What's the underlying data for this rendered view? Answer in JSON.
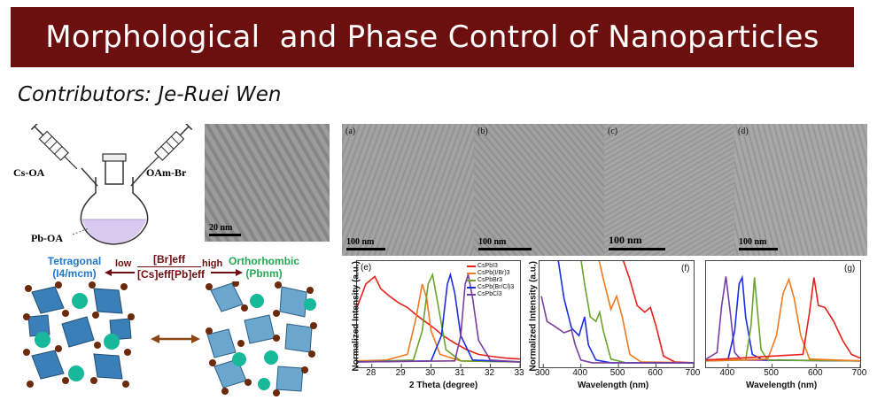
{
  "header": {
    "title": "Morphological  and Phase Control of Nanoparticles",
    "contributors": "Contributors: Je-Ruei Wen"
  },
  "schematic": {
    "left_syringe": "Cs-OA",
    "right_syringe": "OAm-Br",
    "flask": "Pb-OA"
  },
  "tem_small": {
    "scale": "20 nm"
  },
  "tem_panels": [
    {
      "label": "(a)",
      "scale": "100 nm"
    },
    {
      "label": "(b)",
      "scale": "100 nm"
    },
    {
      "label": "(c)",
      "scale": "100 nm"
    },
    {
      "label": "(d)",
      "scale": "100 nm"
    }
  ],
  "phase": {
    "left_title": "Tetragonal",
    "left_group": "(I4/mcm)",
    "right_title": "Orthorhombic",
    "right_group": "(Pbnm)",
    "low": "low",
    "high": "high",
    "numerator": "[Br]eff",
    "denominator": "[Cs]eff[Pb]eff"
  },
  "colors": {
    "banner": "#6b0f0f",
    "tetragonal": "#1f78c8",
    "orthorhombic": "#22aa55",
    "octahedra": "#3a7fb8",
    "cs_sphere": "#18b89a",
    "halide": "#6b2a0a",
    "arrow": "#8b4513"
  },
  "chart_data": [
    {
      "type": "line",
      "panel": "(e)",
      "xlabel": "2 Theta (degree)",
      "ylabel": "Normalized Intensity (a.u.)",
      "xlim": [
        27.5,
        33
      ],
      "xticks": [
        28,
        29,
        30,
        31,
        32,
        33
      ],
      "series": [
        {
          "name": "CsPbI3",
          "color": "#e8201c",
          "x": [
            27.5,
            27.8,
            28.1,
            28.3,
            28.6,
            28.9,
            29.2,
            29.5,
            29.8,
            30.1,
            30.4,
            30.8,
            31.2,
            31.6,
            32.0,
            32.5,
            33.0
          ],
          "y": [
            0.6,
            0.85,
            0.93,
            0.8,
            0.72,
            0.65,
            0.6,
            0.52,
            0.45,
            0.38,
            0.3,
            0.22,
            0.15,
            0.1,
            0.08,
            0.06,
            0.05
          ]
        },
        {
          "name": "CsPb(I/Br)3",
          "color": "#f07a20",
          "x": [
            27.5,
            28.5,
            29.2,
            29.5,
            29.7,
            29.85,
            30.0,
            30.3,
            31.0,
            33.0
          ],
          "y": [
            0.03,
            0.04,
            0.1,
            0.5,
            0.85,
            0.7,
            0.35,
            0.1,
            0.03,
            0.02
          ]
        },
        {
          "name": "CsPbBr3",
          "color": "#6aa42a",
          "x": [
            27.5,
            29.4,
            29.7,
            29.9,
            30.05,
            30.25,
            30.5,
            31.0,
            33.0
          ],
          "y": [
            0.02,
            0.04,
            0.35,
            0.85,
            0.95,
            0.6,
            0.15,
            0.03,
            0.02
          ]
        },
        {
          "name": "CsPb(Br/Cl)3",
          "color": "#1a2fe0",
          "x": [
            27.5,
            30.0,
            30.35,
            30.55,
            30.65,
            30.8,
            31.0,
            31.4,
            33.0
          ],
          "y": [
            0.02,
            0.03,
            0.3,
            0.85,
            0.95,
            0.75,
            0.3,
            0.04,
            0.02
          ]
        },
        {
          "name": "CsPbCl3",
          "color": "#7a3ea0",
          "x": [
            27.5,
            30.8,
            31.0,
            31.15,
            31.25,
            31.4,
            31.6,
            32.0,
            33.0
          ],
          "y": [
            0.02,
            0.03,
            0.3,
            0.85,
            0.95,
            0.7,
            0.25,
            0.04,
            0.02
          ]
        }
      ]
    },
    {
      "type": "line",
      "panel": "(f)",
      "xlabel": "Wavelength (nm)",
      "ylabel": "Normalized Intensity (a.u.)",
      "xlim": [
        290,
        700
      ],
      "xticks": [
        300,
        400,
        500,
        600,
        700
      ],
      "series": [
        {
          "name": "CsPbI3",
          "color": "#e8201c",
          "x": [
            500,
            530,
            550,
            570,
            585,
            600,
            620,
            650,
            700
          ],
          "y": [
            1.3,
            0.9,
            0.62,
            0.55,
            0.6,
            0.4,
            0.08,
            0.02,
            0.01
          ]
        },
        {
          "name": "CsPb(I/Br)3",
          "color": "#f07a20",
          "x": [
            440,
            460,
            480,
            495,
            510,
            530,
            560,
            700
          ],
          "y": [
            1.3,
            0.9,
            0.58,
            0.72,
            0.5,
            0.1,
            0.02,
            0.01
          ]
        },
        {
          "name": "CsPbBr3",
          "color": "#6aa42a",
          "x": [
            395,
            410,
            425,
            440,
            450,
            460,
            480,
            520,
            700
          ],
          "y": [
            1.3,
            0.85,
            0.5,
            0.45,
            0.55,
            0.35,
            0.05,
            0.01,
            0.01
          ]
        },
        {
          "name": "CsPb(Br/Cl)3",
          "color": "#1a2fe0",
          "x": [
            340,
            355,
            375,
            395,
            410,
            420,
            440,
            480,
            700
          ],
          "y": [
            1.1,
            0.7,
            0.38,
            0.3,
            0.5,
            0.2,
            0.04,
            0.01,
            0.01
          ]
        },
        {
          "name": "CsPbCl3",
          "color": "#7a3ea0",
          "x": [
            295,
            310,
            330,
            355,
            375,
            385,
            400,
            430,
            700
          ],
          "y": [
            0.72,
            0.45,
            0.4,
            0.33,
            0.36,
            0.2,
            0.04,
            0.01,
            0.01
          ]
        }
      ]
    },
    {
      "type": "line",
      "panel": "(g)",
      "xlabel": "Wavelength (nm)",
      "xlim": [
        350,
        700
      ],
      "xticks": [
        400,
        500,
        600,
        700
      ],
      "series": [
        {
          "name": "CsPbCl3",
          "color": "#7a3ea0",
          "x": [
            350,
            375,
            385,
            395,
            405,
            415,
            430,
            700
          ],
          "y": [
            0.05,
            0.12,
            0.6,
            0.93,
            0.55,
            0.12,
            0.04,
            0.03
          ]
        },
        {
          "name": "CsPb(Br/Cl)3",
          "color": "#1a2fe0",
          "x": [
            350,
            400,
            415,
            425,
            432,
            440,
            455,
            480,
            700
          ],
          "y": [
            0.04,
            0.05,
            0.35,
            0.85,
            0.92,
            0.5,
            0.1,
            0.04,
            0.03
          ]
        },
        {
          "name": "CsPbBr3",
          "color": "#6aa42a",
          "x": [
            350,
            440,
            452,
            460,
            466,
            475,
            490,
            700
          ],
          "y": [
            0.03,
            0.04,
            0.4,
            0.92,
            0.6,
            0.15,
            0.04,
            0.03
          ]
        },
        {
          "name": "CsPb(I/Br)3",
          "color": "#f07a20",
          "x": [
            350,
            490,
            510,
            525,
            538,
            550,
            565,
            585,
            700
          ],
          "y": [
            0.03,
            0.05,
            0.3,
            0.75,
            0.9,
            0.7,
            0.3,
            0.05,
            0.03
          ]
        },
        {
          "name": "CsPbI3",
          "color": "#e8201c",
          "x": [
            350,
            570,
            585,
            595,
            605,
            620,
            640,
            660,
            680,
            700
          ],
          "y": [
            0.04,
            0.1,
            0.55,
            0.92,
            0.62,
            0.6,
            0.45,
            0.25,
            0.1,
            0.06
          ]
        }
      ]
    }
  ]
}
